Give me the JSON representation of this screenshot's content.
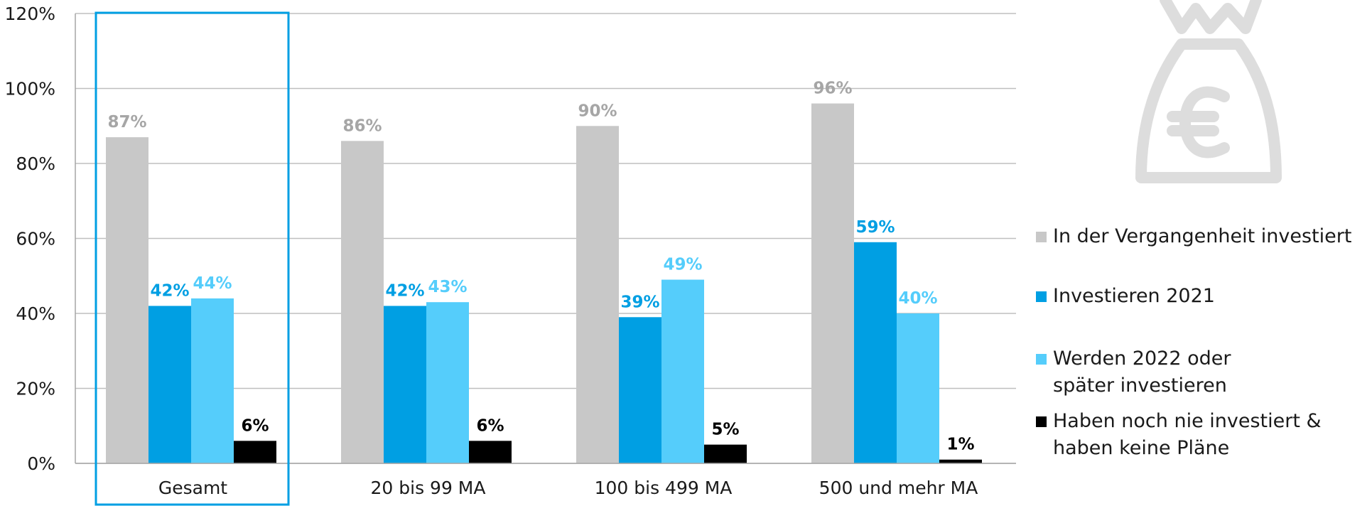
{
  "chart_data": {
    "type": "bar",
    "categories": [
      "Gesamt",
      "20 bis 99 MA",
      "100 bis 499 MA",
      "500 und mehr MA"
    ],
    "series": [
      {
        "name": "In der Vergangenheit investiert",
        "color": "#c8c8c8",
        "values": [
          87,
          86,
          90,
          96
        ],
        "labels": [
          "87%",
          "86%",
          "90%",
          "96%"
        ]
      },
      {
        "name": "Investieren 2021",
        "color": "#009fe3",
        "values": [
          42,
          42,
          39,
          59
        ],
        "labels": [
          "42%",
          "42%",
          "39%",
          "59%"
        ]
      },
      {
        "name": "Werden 2022 oder später investieren",
        "color": "#55cdfb",
        "values": [
          44,
          43,
          49,
          40
        ],
        "labels": [
          "44%",
          "43%",
          "49%",
          "40%"
        ]
      },
      {
        "name": "Haben noch nie investiert & haben keine Pläne",
        "color": "#000000",
        "values": [
          6,
          6,
          5,
          1
        ],
        "labels": [
          "6%",
          "6%",
          "5%",
          "1%"
        ]
      }
    ],
    "ylim": [
      0,
      120
    ],
    "yticks": [
      0,
      20,
      40,
      60,
      80,
      100,
      120
    ],
    "ytick_labels": [
      "0%",
      "20%",
      "40%",
      "60%",
      "80%",
      "100%",
      "120%"
    ],
    "grid": true,
    "legend_position": "right",
    "highlighted_category": "Gesamt",
    "highlight_color": "#009fe3"
  },
  "decoration": {
    "icon": "money-bag-euro-icon",
    "color": "#dddddd"
  }
}
